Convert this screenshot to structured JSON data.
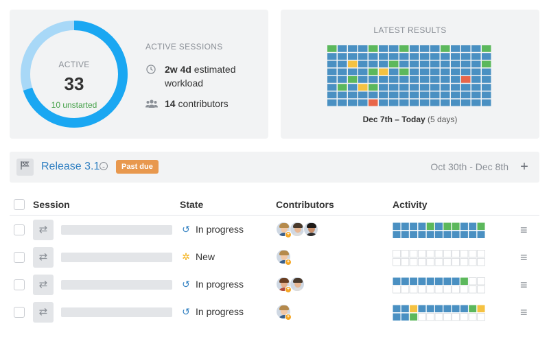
{
  "colors": {
    "blue": "#4a90c2",
    "green": "#5cb85c",
    "yellow": "#f5c242",
    "red": "#e8664a",
    "empty_border": "#d6d9dd",
    "donut_main": "#1aa7f2",
    "donut_light": "#a8d8f7"
  },
  "active_panel": {
    "donut_label": "ACTIVE",
    "donut_value": "33",
    "donut_sub": "10 unstarted",
    "donut_fraction_main": 0.7,
    "sessions_title": "ACTIVE SESSIONS",
    "workload_bold": "2w 4d",
    "workload_text": " estimated workload",
    "contributors_bold": "14",
    "contributors_text": " contributors",
    "workload_icon": "clock-icon",
    "contributors_icon": "users-icon"
  },
  "results_panel": {
    "title": "LATEST RESULTS",
    "caption_bold": "Dec 7th – Today",
    "caption_muted": " (5 days)",
    "grid": [
      "gbbbgbbgbbbgbbbg",
      "bbbbbbbbbbbbbbbb",
      "bbybbbgbbbbbbbbg",
      "bbbbgybgbbbbbbbb",
      "bbgbbbbbbbbbbrbb",
      "bgbygbbbbbbbbbbb",
      "bbbbbbbbbbbbbbbb",
      "bbbbrbbbbbbbbbbb"
    ]
  },
  "release": {
    "icon": "flag-icon",
    "name": "Release 3.1",
    "badge": "Past due",
    "dates": "Oct 30th - Dec 8th",
    "add_label": "+"
  },
  "table": {
    "headers": {
      "session": "Session",
      "state": "State",
      "contributors": "Contributors",
      "activity": "Activity"
    },
    "rows": [
      {
        "state": "In progress",
        "state_icon": "history-icon",
        "contributors": [
          "man-blond",
          "man-dark",
          "woman-dark"
        ],
        "activity": [
          "bbbbgbggbbg",
          "bbbbbbbbbbb"
        ]
      },
      {
        "state": "New",
        "state_icon": "lightbulb-icon",
        "contributors": [
          "man-blond"
        ],
        "activity": [
          "eeeeeeeeeee",
          "eeeeeeeeeee"
        ]
      },
      {
        "state": "In progress",
        "state_icon": "history-icon",
        "contributors": [
          "woman-brown",
          "man-dark"
        ],
        "activity": [
          "bbbbbbbbgee",
          "eeeeeeeeeee"
        ]
      },
      {
        "state": "In progress",
        "state_icon": "history-icon",
        "contributors": [
          "man-blond"
        ],
        "activity": [
          "bbybbbbbbgy",
          "bbgeeeeeeee"
        ]
      }
    ]
  }
}
